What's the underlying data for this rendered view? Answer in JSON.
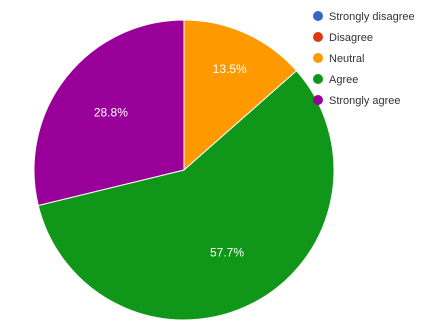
{
  "chart_data": {
    "type": "pie",
    "title": "",
    "slices": [
      {
        "label": "Strongly disagree",
        "value": 0,
        "display": "",
        "color": "#3366cc"
      },
      {
        "label": "Disagree",
        "value": 0,
        "display": "",
        "color": "#dc3912"
      },
      {
        "label": "Neutral",
        "value": 13.5,
        "display": "13.5%",
        "color": "#ff9900"
      },
      {
        "label": "Agree",
        "value": 57.7,
        "display": "57.7%",
        "color": "#109618"
      },
      {
        "label": "Strongly agree",
        "value": 28.8,
        "display": "28.8%",
        "color": "#990099"
      }
    ],
    "legend_position": "right",
    "start_angle_deg": 0,
    "direction": "clockwise"
  }
}
